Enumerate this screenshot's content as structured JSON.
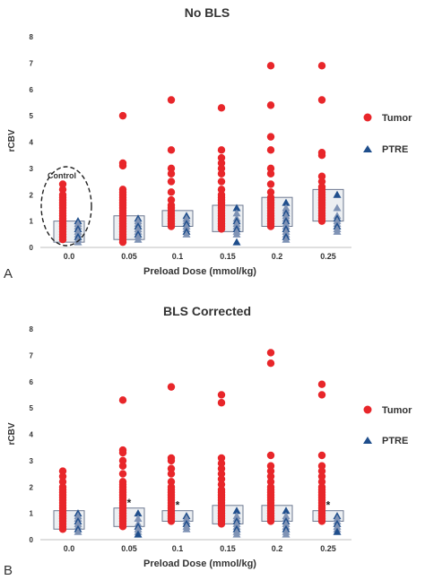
{
  "chart_data": [
    {
      "panel_label": "A",
      "type": "scatter",
      "title": "No BLS",
      "xlabel": "Preload Dose (mmol/kg)",
      "ylabel": "rCBV",
      "categories": [
        "0.0",
        "0.05",
        "0.1",
        "0.15",
        "0.2",
        "0.25"
      ],
      "ylim": [
        0,
        8
      ],
      "yticks": [
        "0",
        "1",
        "2",
        "3",
        "4",
        "5",
        "6",
        "7",
        "8"
      ],
      "grid": false,
      "legend_position": "right",
      "annotation": "Control",
      "series": [
        {
          "name": "Tumor",
          "marker": "circle",
          "color": "#e8262a",
          "values": [
            [
              2.4,
              2.2,
              2.0,
              1.9,
              1.8,
              1.7,
              1.6,
              1.5,
              1.4,
              1.3,
              1.2,
              1.1,
              1.0,
              0.9,
              0.8,
              0.7,
              0.6,
              0.5,
              0.4,
              0.3
            ],
            [
              5.0,
              3.2,
              3.1,
              2.2,
              2.1,
              2.0,
              1.9,
              1.8,
              1.7,
              1.6,
              1.5,
              1.4,
              1.3,
              1.2,
              1.1,
              1.0,
              0.9,
              0.8,
              0.7,
              0.6,
              0.5,
              0.4,
              0.3,
              0.2
            ],
            [
              5.6,
              3.7,
              3.0,
              2.8,
              2.5,
              2.1,
              1.8,
              1.6,
              1.5,
              1.4,
              1.3,
              1.2,
              1.1,
              1.0,
              0.9,
              0.8
            ],
            [
              5.3,
              3.7,
              3.4,
              3.2,
              3.0,
              2.8,
              2.5,
              2.2,
              2.0,
              1.9,
              1.8,
              1.7,
              1.6,
              1.5,
              1.4,
              1.3,
              1.2,
              1.1,
              1.0,
              0.9,
              0.8,
              0.7
            ],
            [
              6.9,
              5.4,
              4.2,
              3.7,
              3.0,
              2.8,
              2.4,
              2.1,
              1.9,
              1.8,
              1.7,
              1.6,
              1.5,
              1.4,
              1.3,
              1.2,
              1.1,
              1.0,
              0.9,
              0.8
            ],
            [
              6.9,
              5.6,
              3.6,
              3.5,
              2.7,
              2.5,
              2.3,
              2.2,
              2.1,
              2.0,
              1.9,
              1.8,
              1.7,
              1.6,
              1.5,
              1.4,
              1.3,
              1.2,
              1.1,
              1.0
            ]
          ]
        },
        {
          "name": "PTRE",
          "marker": "triangle",
          "color": "#1f4e8c",
          "values": [
            [
              1.0,
              0.9,
              0.8,
              0.7,
              0.6,
              0.5,
              0.4,
              0.3,
              0.2
            ],
            [
              1.1,
              1.0,
              0.9,
              0.8,
              0.7,
              0.6,
              0.5,
              0.4,
              0.3
            ],
            [
              1.2,
              1.1,
              1.0,
              0.9,
              0.8,
              0.7,
              0.6,
              0.5
            ],
            [
              1.5,
              1.3,
              1.1,
              1.0,
              0.9,
              0.8,
              0.7,
              0.6,
              0.5,
              0.2
            ],
            [
              1.7,
              1.5,
              1.4,
              1.3,
              1.2,
              1.1,
              1.0,
              0.9,
              0.8,
              0.7,
              0.6,
              0.5,
              0.4,
              0.3
            ],
            [
              2.0,
              1.5,
              1.2,
              1.1,
              1.0,
              0.9,
              0.8,
              0.7,
              0.6
            ]
          ]
        }
      ],
      "boxes": [
        {
          "low": 0.2,
          "high": 1.0
        },
        {
          "low": 0.3,
          "high": 1.2
        },
        {
          "low": 0.8,
          "high": 1.4
        },
        {
          "low": 0.6,
          "high": 1.6
        },
        {
          "low": 0.8,
          "high": 1.9
        },
        {
          "low": 1.0,
          "high": 2.2
        }
      ],
      "significance": [
        "",
        "",
        "",
        "",
        "",
        ""
      ]
    },
    {
      "panel_label": "B",
      "type": "scatter",
      "title": "BLS Corrected",
      "xlabel": "Preload Dose (mmol/kg)",
      "ylabel": "rCBV",
      "categories": [
        "0.0",
        "0.05",
        "0.1",
        "0.15",
        "0.2",
        "0.25"
      ],
      "ylim": [
        0,
        8
      ],
      "yticks": [
        "0",
        "1",
        "2",
        "3",
        "4",
        "5",
        "6",
        "7",
        "8"
      ],
      "grid": false,
      "legend_position": "right",
      "series": [
        {
          "name": "Tumor",
          "marker": "circle",
          "color": "#e8262a",
          "values": [
            [
              2.6,
              2.4,
              2.2,
              2.0,
              1.9,
              1.8,
              1.7,
              1.6,
              1.5,
              1.4,
              1.3,
              1.2,
              1.1,
              1.0,
              0.9,
              0.8,
              0.7,
              0.6,
              0.5,
              0.4
            ],
            [
              5.3,
              3.4,
              3.3,
              3.0,
              2.8,
              2.5,
              2.2,
              2.1,
              2.0,
              1.9,
              1.8,
              1.7,
              1.6,
              1.5,
              1.4,
              1.3,
              1.2,
              1.1,
              1.0,
              0.9,
              0.8,
              0.7,
              0.6,
              0.5
            ],
            [
              5.8,
              3.1,
              3.0,
              2.7,
              2.5,
              2.2,
              2.0,
              1.9,
              1.8,
              1.7,
              1.6,
              1.5,
              1.4,
              1.3,
              1.2,
              1.1,
              1.0,
              0.9,
              0.8,
              0.7
            ],
            [
              5.5,
              5.2,
              3.1,
              2.9,
              2.7,
              2.5,
              2.3,
              2.1,
              1.9,
              1.8,
              1.7,
              1.6,
              1.5,
              1.4,
              1.3,
              1.2,
              1.1,
              1.0,
              0.9,
              0.8,
              0.7,
              0.6
            ],
            [
              7.1,
              6.7,
              3.2,
              2.8,
              2.6,
              2.4,
              2.2,
              2.0,
              1.9,
              1.8,
              1.7,
              1.6,
              1.5,
              1.4,
              1.3,
              1.2,
              1.1,
              1.0,
              0.9,
              0.8,
              0.7
            ],
            [
              5.9,
              5.5,
              3.2,
              2.8,
              2.6,
              2.4,
              2.2,
              2.0,
              1.9,
              1.8,
              1.7,
              1.6,
              1.5,
              1.4,
              1.3,
              1.2,
              1.1,
              1.0,
              0.9,
              0.8,
              0.7
            ]
          ]
        },
        {
          "name": "PTRE",
          "marker": "triangle",
          "color": "#1f4e8c",
          "values": [
            [
              1.0,
              0.9,
              0.8,
              0.7,
              0.6,
              0.5,
              0.4,
              0.3
            ],
            [
              1.0,
              0.8,
              0.6,
              0.5,
              0.4,
              0.3,
              0.2
            ],
            [
              0.9,
              0.8,
              0.7,
              0.6,
              0.5,
              0.4
            ],
            [
              1.1,
              0.9,
              0.8,
              0.7,
              0.6,
              0.5,
              0.4,
              0.3,
              0.2
            ],
            [
              1.1,
              0.9,
              0.8,
              0.7,
              0.6,
              0.5,
              0.4,
              0.3,
              0.2
            ],
            [
              0.9,
              0.8,
              0.7,
              0.6,
              0.5,
              0.4,
              0.3
            ]
          ]
        }
      ],
      "boxes": [
        {
          "low": 0.4,
          "high": 1.1
        },
        {
          "low": 0.5,
          "high": 1.2
        },
        {
          "low": 0.7,
          "high": 1.1
        },
        {
          "low": 0.6,
          "high": 1.3
        },
        {
          "low": 0.7,
          "high": 1.3
        },
        {
          "low": 0.7,
          "high": 1.1
        }
      ],
      "significance": [
        "",
        "*",
        "*",
        "",
        "",
        "*"
      ]
    }
  ]
}
